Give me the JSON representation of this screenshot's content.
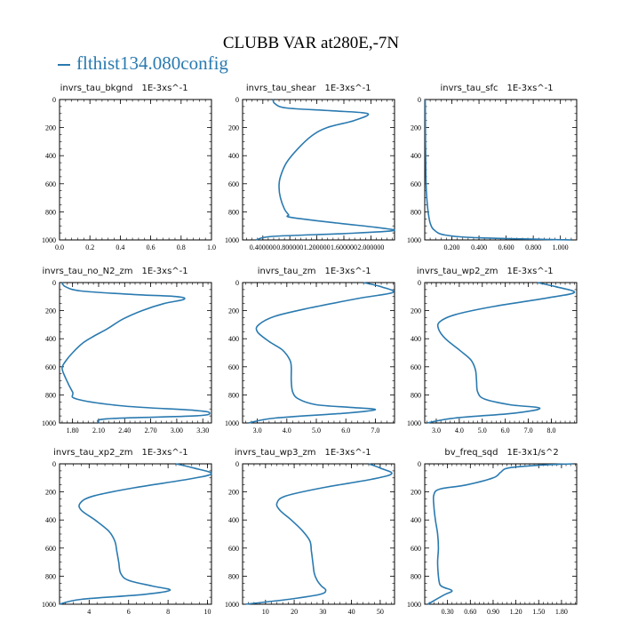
{
  "figure": {
    "title": "CLUBB VAR at280E,-7N",
    "legend_label": "flthist134.080config",
    "series_color": "#2a7ab0"
  },
  "chart_data": [
    {
      "type": "line",
      "title": "invrs_tau_bkgnd",
      "units": "1E-3xs^-1",
      "xlim": [
        0,
        1.0
      ],
      "ylim": [
        1000,
        0
      ],
      "xticks": [
        "0.0",
        "0.2",
        "0.4",
        "0.6",
        "0.8",
        "1.0"
      ],
      "yticks": [
        "0",
        "200",
        "400",
        "600",
        "800",
        "1000"
      ],
      "series": [
        {
          "x": [],
          "y": []
        }
      ]
    },
    {
      "type": "line",
      "title": "invrs_tau_shear",
      "units": "1E-3xs^-1",
      "xlim": [
        0.1,
        2.35
      ],
      "ylim": [
        1000,
        0
      ],
      "xticks": [
        "0.400000",
        "0.800000",
        "1.200000",
        "1.600000",
        "2.000000"
      ],
      "yticks": [
        "0",
        "200",
        "400",
        "600",
        "800",
        "1000"
      ],
      "series": [
        {
          "x": [
            0.55,
            0.58,
            0.75,
            1.4,
            1.95,
            1.75,
            1.35,
            1.12,
            0.92,
            0.75,
            0.66,
            0.64,
            0.66,
            0.72,
            0.78,
            0.82,
            1.5,
            2.15,
            2.32,
            1.6,
            0.55,
            0.3
          ],
          "y": [
            0,
            30,
            60,
            80,
            100,
            150,
            200,
            260,
            350,
            450,
            550,
            620,
            700,
            780,
            820,
            840,
            880,
            915,
            935,
            955,
            975,
            1000
          ]
        }
      ]
    },
    {
      "type": "line",
      "title": "invrs_tau_sfc",
      "units": "1E-3xs^-1",
      "xlim": [
        0.0,
        1.12
      ],
      "ylim": [
        1000,
        0
      ],
      "xticks": [
        "0.200",
        "0.400",
        "0.600",
        "0.800",
        "1.000"
      ],
      "yticks": [
        "0",
        "200",
        "400",
        "600",
        "800",
        "1000"
      ],
      "series": [
        {
          "x": [
            0.004,
            0.005,
            0.007,
            0.01,
            0.015,
            0.025,
            0.04,
            0.07,
            0.15,
            0.4,
            1.08
          ],
          "y": [
            0,
            200,
            400,
            600,
            700,
            800,
            880,
            930,
            965,
            985,
            1000
          ]
        }
      ]
    },
    {
      "type": "line",
      "title": "invrs_tau_no_N2_zm",
      "units": "1E-3xs^-1",
      "xlim": [
        1.65,
        3.4
      ],
      "ylim": [
        1000,
        0
      ],
      "xticks": [
        "1.80",
        "2.10",
        "2.40",
        "2.70",
        "3.00",
        "3.30"
      ],
      "yticks": [
        "0",
        "200",
        "400",
        "600",
        "800",
        "1000"
      ],
      "series": [
        {
          "x": [
            1.68,
            1.72,
            1.9,
            2.5,
            3.0,
            3.08,
            2.85,
            2.6,
            2.38,
            2.2,
            2.05,
            1.92,
            1.8,
            1.72,
            1.68,
            1.72,
            1.8,
            1.85,
            2.4,
            3.2,
            3.38,
            3.2,
            2.2,
            2.1
          ],
          "y": [
            0,
            30,
            60,
            85,
            100,
            120,
            150,
            200,
            260,
            330,
            380,
            430,
            500,
            560,
            610,
            680,
            780,
            830,
            880,
            910,
            930,
            950,
            970,
            1000
          ]
        }
      ]
    },
    {
      "type": "line",
      "title": "invrs_tau_zm",
      "units": "1E-3xs^-1",
      "xlim": [
        2.5,
        7.65
      ],
      "ylim": [
        1000,
        0
      ],
      "xticks": [
        "3.0",
        "4.0",
        "5.0",
        "6.0",
        "7.0"
      ],
      "yticks": [
        "0",
        "200",
        "400",
        "600",
        "800",
        "1000"
      ],
      "series": [
        {
          "x": [
            6.6,
            7.2,
            7.6,
            6.5,
            4.8,
            3.6,
            3.05,
            3.0,
            3.4,
            3.85,
            4.1,
            4.15,
            4.15,
            4.2,
            4.4,
            5.0,
            6.2,
            7.0,
            6.0,
            3.6,
            2.7
          ],
          "y": [
            0,
            30,
            70,
            110,
            180,
            240,
            300,
            350,
            420,
            480,
            550,
            600,
            700,
            780,
            830,
            870,
            890,
            905,
            930,
            965,
            1000
          ]
        }
      ]
    },
    {
      "type": "line",
      "title": "invrs_tau_wp2_zm",
      "units": "1E-3xs^-1",
      "xlim": [
        2.5,
        9.1
      ],
      "ylim": [
        1000,
        0
      ],
      "xticks": [
        "3.0",
        "4.0",
        "5.0",
        "6.0",
        "7.0",
        "8.0"
      ],
      "yticks": [
        "0",
        "200",
        "400",
        "600",
        "800",
        "1000"
      ],
      "series": [
        {
          "x": [
            7.4,
            8.2,
            9.0,
            7.8,
            5.5,
            3.8,
            3.15,
            3.1,
            3.4,
            4.0,
            4.5,
            4.7,
            4.75,
            4.8,
            5.1,
            6.2,
            7.5,
            6.4,
            3.8,
            2.6
          ],
          "y": [
            0,
            30,
            70,
            110,
            170,
            230,
            280,
            330,
            400,
            480,
            550,
            620,
            700,
            780,
            830,
            870,
            895,
            930,
            965,
            1000
          ]
        }
      ]
    },
    {
      "type": "line",
      "title": "invrs_tau_xp2_zm",
      "units": "1E-3xs^-1",
      "xlim": [
        2.5,
        10.2
      ],
      "ylim": [
        1000,
        0
      ],
      "xticks": [
        "4",
        "6",
        "8",
        "10"
      ],
      "yticks": [
        "0",
        "200",
        "400",
        "600",
        "800",
        "1000"
      ],
      "series": [
        {
          "x": [
            8.4,
            9.3,
            10.2,
            9.0,
            6.3,
            4.2,
            3.55,
            3.6,
            4.3,
            5.0,
            5.3,
            5.4,
            5.5,
            5.6,
            6.0,
            7.2,
            8.1,
            6.8,
            3.6,
            2.5
          ],
          "y": [
            0,
            30,
            70,
            110,
            170,
            230,
            280,
            330,
            400,
            480,
            550,
            620,
            700,
            780,
            830,
            870,
            900,
            930,
            965,
            1000
          ]
        }
      ]
    },
    {
      "type": "line",
      "title": "invrs_tau_wp3_zm",
      "units": "1E-3xs^-1",
      "xlim": [
        2,
        55
      ],
      "ylim": [
        1000,
        0
      ],
      "xticks": [
        "10",
        "20",
        "30",
        "40",
        "50"
      ],
      "yticks": [
        "0",
        "200",
        "400",
        "600",
        "800",
        "1000"
      ],
      "series": [
        {
          "x": [
            46,
            50,
            54,
            47,
            30,
            17,
            14,
            15,
            19,
            23,
            25.5,
            26,
            26.5,
            27,
            28,
            29.5,
            31,
            29,
            18,
            3
          ],
          "y": [
            0,
            30,
            70,
            110,
            170,
            230,
            280,
            330,
            400,
            480,
            550,
            620,
            700,
            780,
            830,
            870,
            900,
            930,
            965,
            1000
          ]
        }
      ]
    },
    {
      "type": "line",
      "title": "bv_freq_sqd",
      "units": "1E-3x1/s^2",
      "xlim": [
        0,
        2.0
      ],
      "ylim": [
        1000,
        0
      ],
      "xticks": [
        "0.30",
        "0.60",
        "0.90",
        "1.20",
        "1.50",
        "1.80"
      ],
      "yticks": [
        "0",
        "200",
        "400",
        "600",
        "800",
        "1000"
      ],
      "series": [
        {
          "x": [
            1.95,
            1.5,
            1.1,
            1.0,
            0.9,
            0.55,
            0.2,
            0.12,
            0.12,
            0.14,
            0.17,
            0.18,
            0.17,
            0.18,
            0.2,
            0.25,
            0.36,
            0.25,
            0.04
          ],
          "y": [
            0,
            10,
            30,
            60,
            100,
            150,
            180,
            220,
            300,
            400,
            500,
            600,
            700,
            800,
            860,
            880,
            905,
            935,
            1000
          ]
        }
      ]
    }
  ]
}
